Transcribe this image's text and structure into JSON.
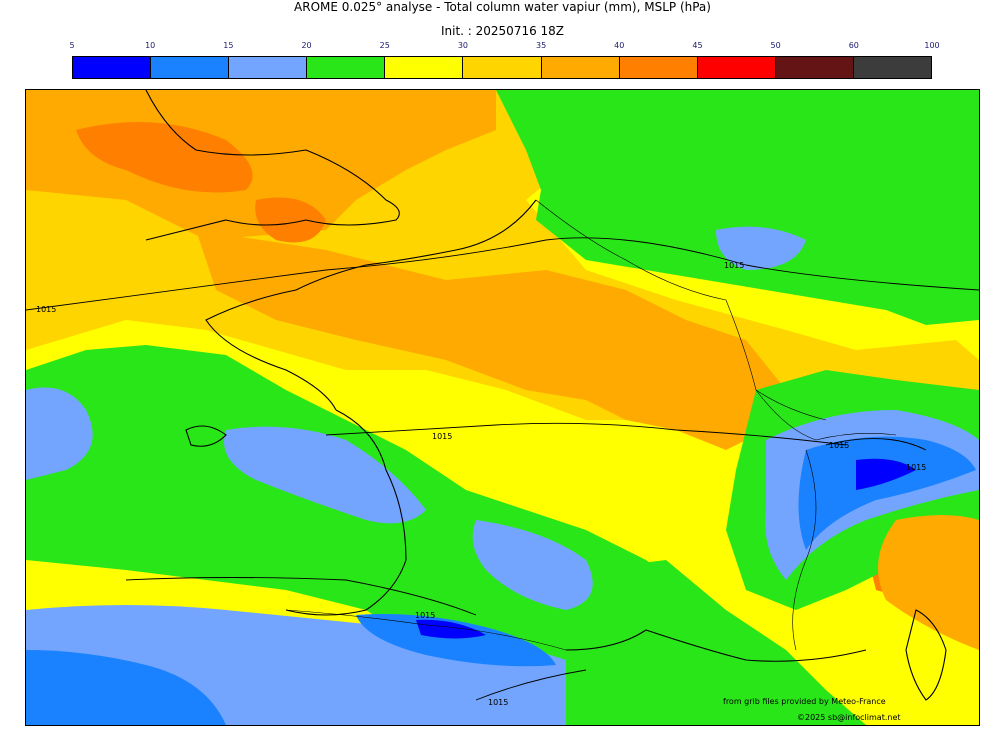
{
  "title": "AROME 0.025° analyse - Total column water vapiur (mm), MSLP (hPa)",
  "subtitle": "Init. : 20250716 18Z",
  "colorbar": {
    "ticks": [
      "5",
      "10",
      "15",
      "20",
      "25",
      "30",
      "35",
      "40",
      "45",
      "50",
      "60",
      "100"
    ],
    "colors": [
      "#0000ff",
      "#1a82ff",
      "#73a5ff",
      "#29e619",
      "#ffff00",
      "#ffd500",
      "#ffaa00",
      "#ff8000",
      "#ff0000",
      "#641414",
      "#3c3c3c"
    ]
  },
  "map": {
    "isobar_labels": [
      "1015",
      "1015",
      "1015",
      "1015",
      "1015",
      "1015",
      "1015"
    ]
  },
  "credits": {
    "source": "from grib files provided by Meteo-France",
    "copyright": "©2025 sb@infoclimat.net"
  }
}
